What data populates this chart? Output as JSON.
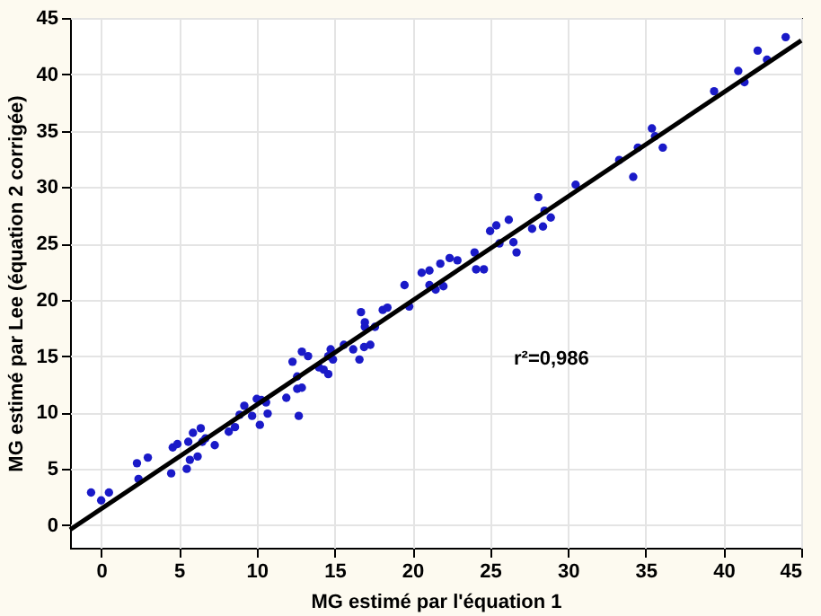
{
  "chart_data": {
    "type": "scatter",
    "xlabel": "MG estimé par l'équation 1",
    "ylabel": "MG estimé par Lee (équation 2 corrigée)",
    "annotations": [
      "r²=0,986"
    ],
    "xlim": [
      -2,
      45
    ],
    "ylim": [
      -2,
      45
    ],
    "xticks": [
      0,
      5,
      10,
      15,
      20,
      25,
      30,
      35,
      40,
      45
    ],
    "yticks": [
      0,
      5,
      10,
      15,
      20,
      25,
      30,
      35,
      40,
      45
    ],
    "grid": true,
    "series": [
      {
        "color": "#1a1ac8",
        "marker": "circle",
        "x": [
          -0.65,
          0,
          0.5,
          2.3,
          2.4,
          3.0,
          4.5,
          4.6,
          4.9,
          5.6,
          5.5,
          5.7,
          5.9,
          6.2,
          6.4,
          6.5,
          6.7,
          7.3,
          8.2,
          8.6,
          8.9,
          9.2,
          9.7,
          10.0,
          10.3,
          10.2,
          10.6,
          10.7,
          11.9,
          12.3,
          12.6,
          12.6,
          12.7,
          12.9,
          12.9,
          13.3,
          14.0,
          14.3,
          14.6,
          14.6,
          14.75,
          14.9,
          15.6,
          16.2,
          16.6,
          16.7,
          16.95,
          16.95,
          16.9,
          17.3,
          17.6,
          18.1,
          18.4,
          19.5,
          19.8,
          20.6,
          21.1,
          21.1,
          21.5,
          21.8,
          22.0,
          22.4,
          22.9,
          24.0,
          24.1,
          24.6,
          25.0,
          25.4,
          25.6,
          26.2,
          26.5,
          26.7,
          27.7,
          28.1,
          28.4,
          28.5,
          28.9,
          30.5,
          33.3,
          34.2,
          34.5,
          35.4,
          35.6,
          36.1,
          39.4,
          40.95,
          41.35,
          42.2,
          42.8,
          44.0
        ],
        "values": [
          2.9,
          2.2,
          2.9,
          5.5,
          4.1,
          6.0,
          4.6,
          6.9,
          7.2,
          7.4,
          5.0,
          5.8,
          8.2,
          6.1,
          8.6,
          7.4,
          7.7,
          7.1,
          8.3,
          8.7,
          9.8,
          10.6,
          9.7,
          11.2,
          11.1,
          8.9,
          10.9,
          9.9,
          11.3,
          14.5,
          13.2,
          12.1,
          9.7,
          15.4,
          12.2,
          15.0,
          14.0,
          13.8,
          13.4,
          15.0,
          15.6,
          14.7,
          16.0,
          15.6,
          14.7,
          18.9,
          18.0,
          17.6,
          15.8,
          16.0,
          17.6,
          19.1,
          19.3,
          21.3,
          19.4,
          22.4,
          22.6,
          21.3,
          20.9,
          23.2,
          21.2,
          23.7,
          23.5,
          24.2,
          22.7,
          22.7,
          26.1,
          26.6,
          25.0,
          27.1,
          25.1,
          24.2,
          26.3,
          29.1,
          26.5,
          27.9,
          27.3,
          30.2,
          32.4,
          30.9,
          33.5,
          35.2,
          34.5,
          33.5,
          38.5,
          40.3,
          39.3,
          42.1,
          41.3,
          43.3
        ]
      },
      {
        "type": "line",
        "color": "#000000",
        "x": [
          -2,
          45
        ],
        "values": [
          -0.4,
          43.0
        ]
      }
    ]
  }
}
